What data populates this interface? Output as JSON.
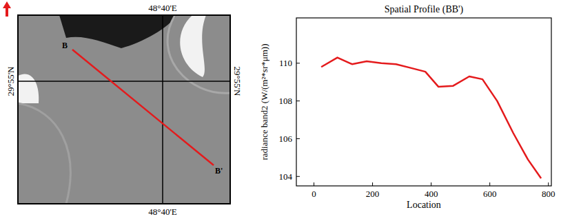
{
  "chart_data": {
    "type": "line",
    "title": "Spatial Profile (BB')",
    "x_label": "Location",
    "y_label": "radiance band2 (W/(m²*sr*μm))",
    "x": [
      25,
      80,
      130,
      180,
      230,
      280,
      330,
      380,
      425,
      475,
      530,
      575,
      625,
      680,
      730,
      775
    ],
    "values": [
      109.8,
      110.3,
      109.95,
      110.1,
      110.0,
      109.95,
      109.75,
      109.55,
      108.75,
      108.8,
      109.3,
      109.15,
      108.0,
      106.3,
      104.9,
      103.9
    ],
    "color": "#e41a1c",
    "xlim": [
      -60,
      810
    ],
    "xticks": [
      0,
      200,
      400,
      600,
      800
    ],
    "ylim": [
      103.5,
      112.4
    ],
    "yticks": [
      104,
      106,
      108,
      110
    ],
    "grid": false
  },
  "image_panel": {
    "lon_label_top": "48°40'E",
    "lon_label_bottom": "48°40'E",
    "lat_label_left": "29°55'N",
    "lat_label_right": "29°55'N",
    "profile_start": "B",
    "profile_end": "B'"
  }
}
